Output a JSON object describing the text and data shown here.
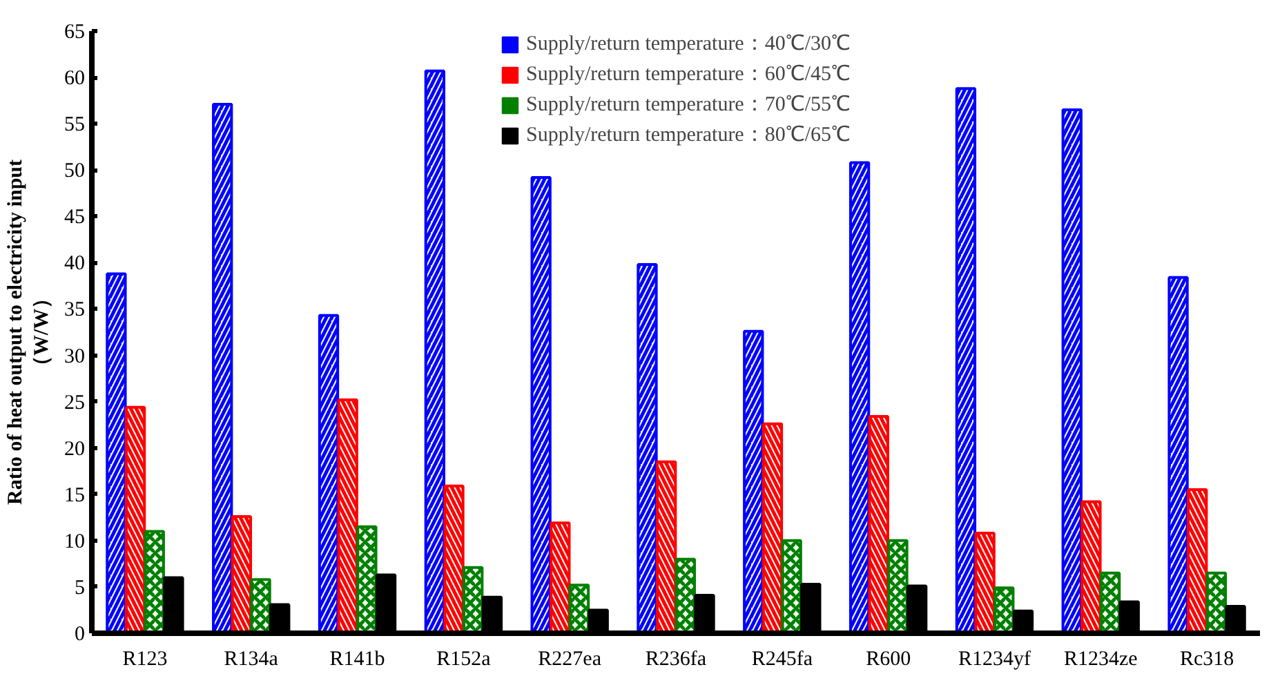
{
  "chart_data": {
    "type": "bar",
    "ylabel": "Ratio of heat output to electricity input\n（W/W）",
    "categories": [
      "R123",
      "R134a",
      "R141b",
      "R152a",
      "R227ea",
      "R236fa",
      "R245fa",
      "R600",
      "R1234yf",
      "R1234ze",
      "Rc318"
    ],
    "series": [
      {
        "name": "Supply/return temperature：40℃/30℃",
        "color": "#0000ff",
        "values": [
          38.8,
          57.1,
          34.3,
          60.7,
          49.2,
          39.8,
          32.6,
          50.8,
          58.8,
          56.5,
          38.4
        ]
      },
      {
        "name": "Supply/return temperature：60℃/45℃",
        "color": "#ff0000",
        "values": [
          24.4,
          12.6,
          25.2,
          15.9,
          11.9,
          18.5,
          22.6,
          23.4,
          10.8,
          14.2,
          15.5
        ]
      },
      {
        "name": "Supply/return temperature：70℃/55℃",
        "color": "#008000",
        "values": [
          11.0,
          5.8,
          11.5,
          7.1,
          5.2,
          8.0,
          10.0,
          10.0,
          4.9,
          6.5,
          6.5
        ]
      },
      {
        "name": "Supply/return temperature：80℃/65℃",
        "color": "#000000",
        "values": [
          6.0,
          3.1,
          6.3,
          3.9,
          2.5,
          4.1,
          5.3,
          5.1,
          2.4,
          3.4,
          2.9
        ]
      }
    ],
    "ylim": [
      0,
      65
    ],
    "yticks": [
      0,
      5,
      10,
      15,
      20,
      25,
      30,
      35,
      40,
      45,
      50,
      55,
      60,
      65
    ],
    "grid": false,
    "legend": "top"
  }
}
